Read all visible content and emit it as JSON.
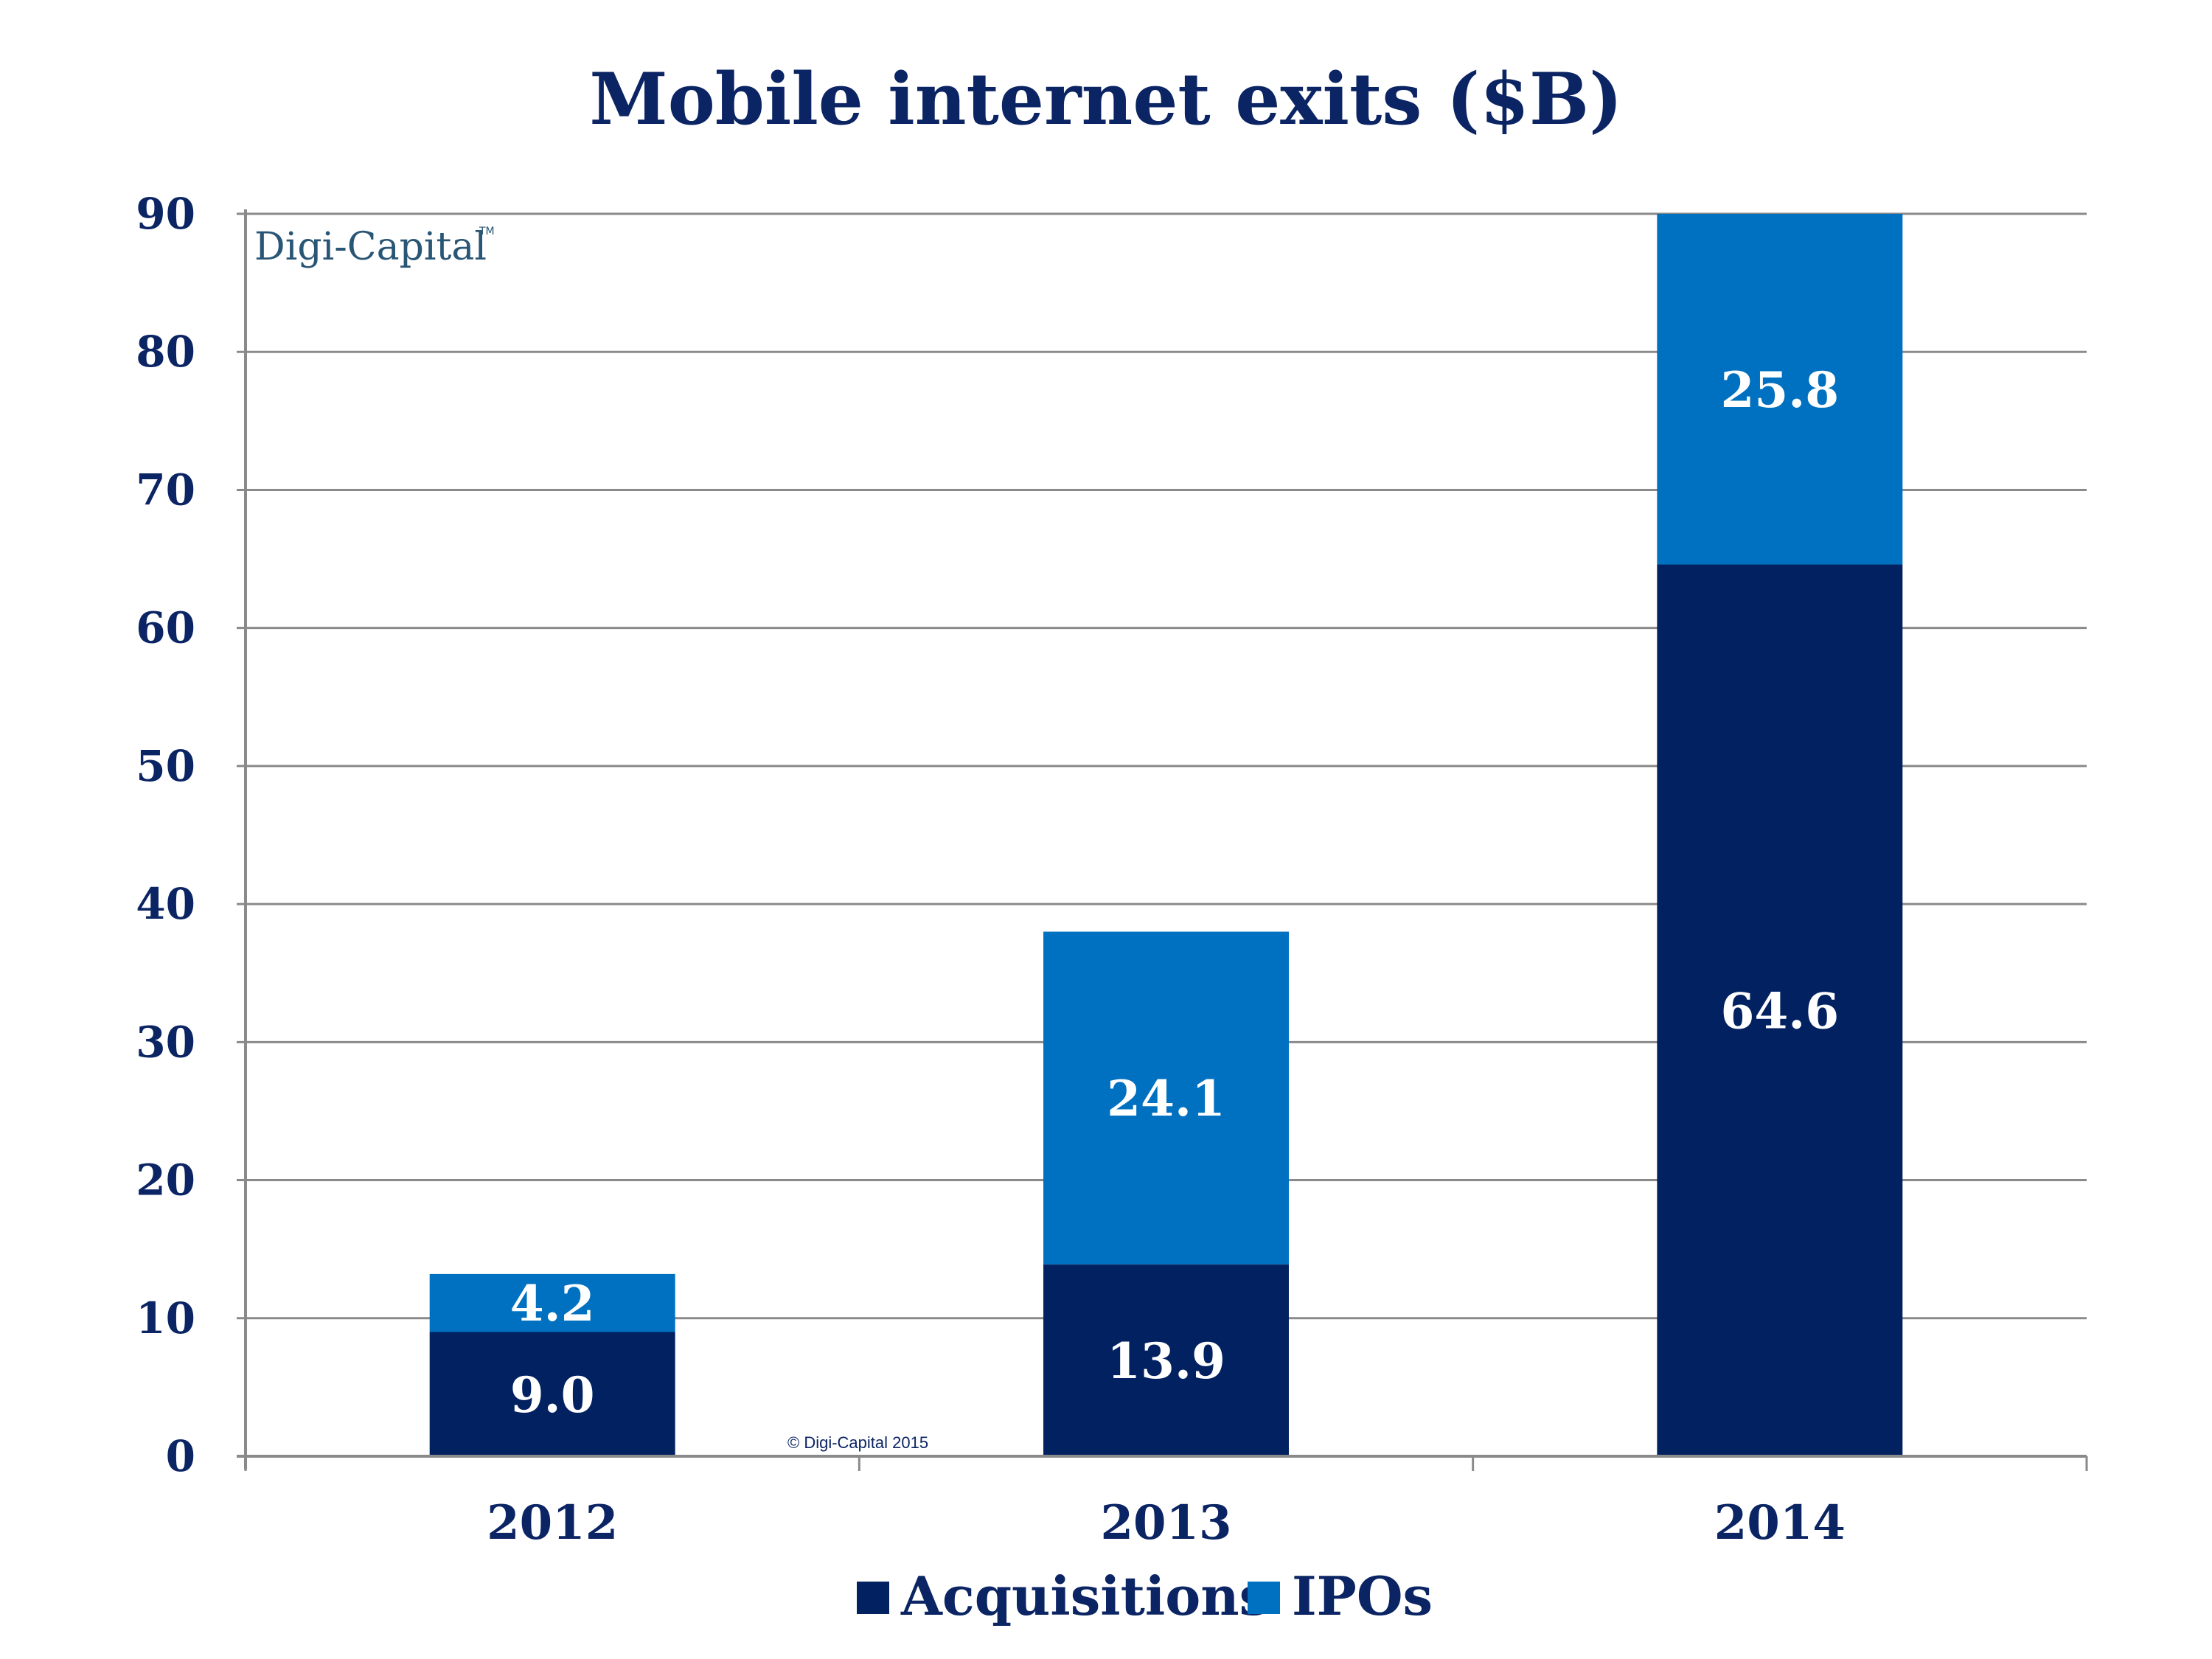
{
  "chart_data": {
    "type": "bar",
    "stacked": true,
    "title": "Mobile internet exits ($B)",
    "xlabel": "",
    "ylabel": "",
    "categories": [
      "2012",
      "2013",
      "2014"
    ],
    "series": [
      {
        "name": "Acquisitions",
        "color": "#022160",
        "values": [
          9.0,
          13.9,
          64.6
        ],
        "labels": [
          "9.0",
          "13.9",
          "64.6"
        ]
      },
      {
        "name": "IPOs",
        "color": "#0070c0",
        "values": [
          4.2,
          24.1,
          25.8
        ],
        "labels": [
          "4.2",
          "24.1",
          "25.8"
        ]
      }
    ],
    "ylim": [
      0,
      90
    ],
    "yticks": [
      0,
      10,
      20,
      30,
      40,
      50,
      60,
      70,
      80,
      90
    ],
    "grid": true,
    "legend": "bottom-center",
    "watermark": {
      "brand": "Digi-Capital",
      "tm": "TM",
      "copyright": "© Digi-Capital 2015"
    }
  }
}
